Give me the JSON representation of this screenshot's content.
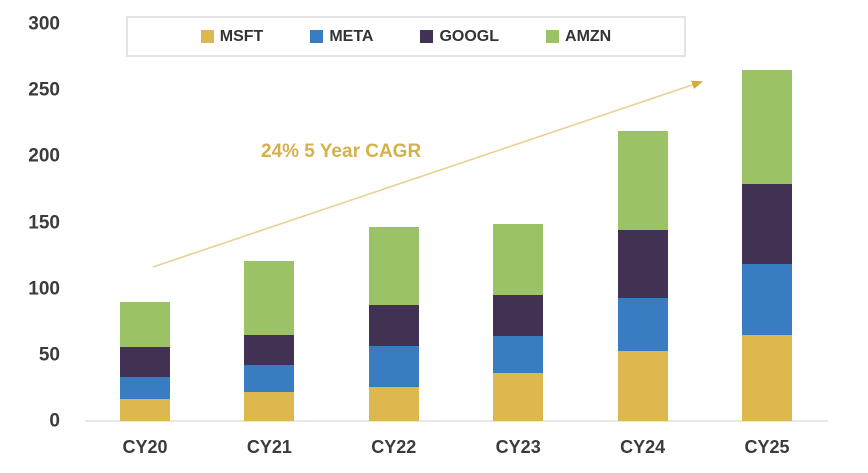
{
  "chart_data": {
    "type": "bar",
    "stacked": true,
    "title": "",
    "categories": [
      "CY20",
      "CY21",
      "CY22",
      "CY23",
      "CY24",
      "CY25"
    ],
    "series": [
      {
        "name": "MSFT",
        "color": "#ddb84f",
        "values": [
          17,
          22,
          26,
          36,
          53,
          65
        ]
      },
      {
        "name": "META",
        "color": "#387cc2",
        "values": [
          16,
          20,
          31,
          28,
          40,
          54
        ]
      },
      {
        "name": "GOOGL",
        "color": "#413254",
        "values": [
          23,
          23,
          31,
          31,
          51,
          60
        ]
      },
      {
        "name": "AMZN",
        "color": "#9cc266",
        "values": [
          34,
          56,
          59,
          54,
          75,
          86
        ]
      }
    ],
    "totals": [
      90,
      121,
      147,
      149,
      219,
      265
    ],
    "ylim": [
      0,
      300
    ],
    "yticks": [
      0,
      50,
      100,
      150,
      200,
      250,
      300
    ],
    "grid": false,
    "legend_position": "top",
    "annotation": {
      "text": "24% 5 Year CAGR",
      "text_color": "#d5b14b",
      "arrow_line_color": "#e9d095",
      "arrow_head_color": "#d9a93c"
    },
    "axis_text_color": "#3b3b3b"
  }
}
